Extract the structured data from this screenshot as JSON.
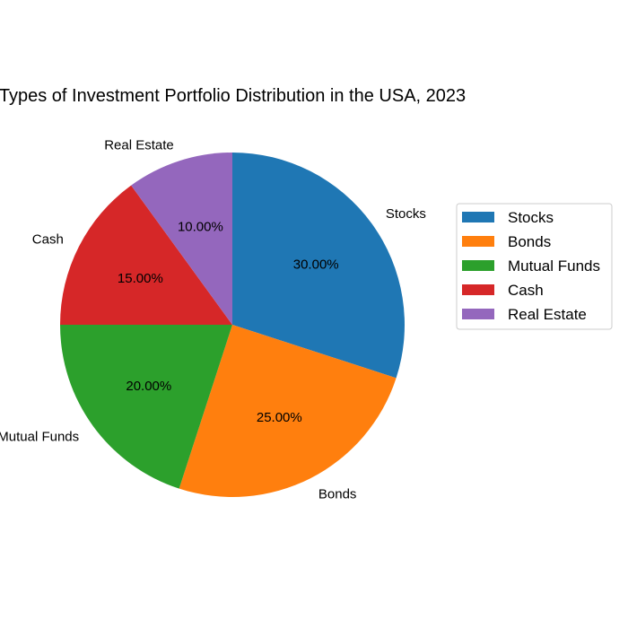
{
  "chart_data": {
    "type": "pie",
    "title": "Types of Investment Portfolio Distribution in the USA, 2023",
    "labels": [
      "Stocks",
      "Bonds",
      "Mutual Funds",
      "Cash",
      "Real Estate"
    ],
    "values": [
      30,
      25,
      20,
      15,
      10
    ],
    "percent_labels": [
      "30.00%",
      "25.00%",
      "20.00%",
      "15.00%",
      "10.00%"
    ],
    "colors": [
      "#1f77b4",
      "#ff7f0e",
      "#2ca02c",
      "#d62728",
      "#9467bd"
    ],
    "start_angle_deg": 90,
    "direction": "clockwise",
    "legend": {
      "placement": "right",
      "entries": [
        "Stocks",
        "Bonds",
        "Mutual Funds",
        "Cash",
        "Real Estate"
      ]
    }
  }
}
